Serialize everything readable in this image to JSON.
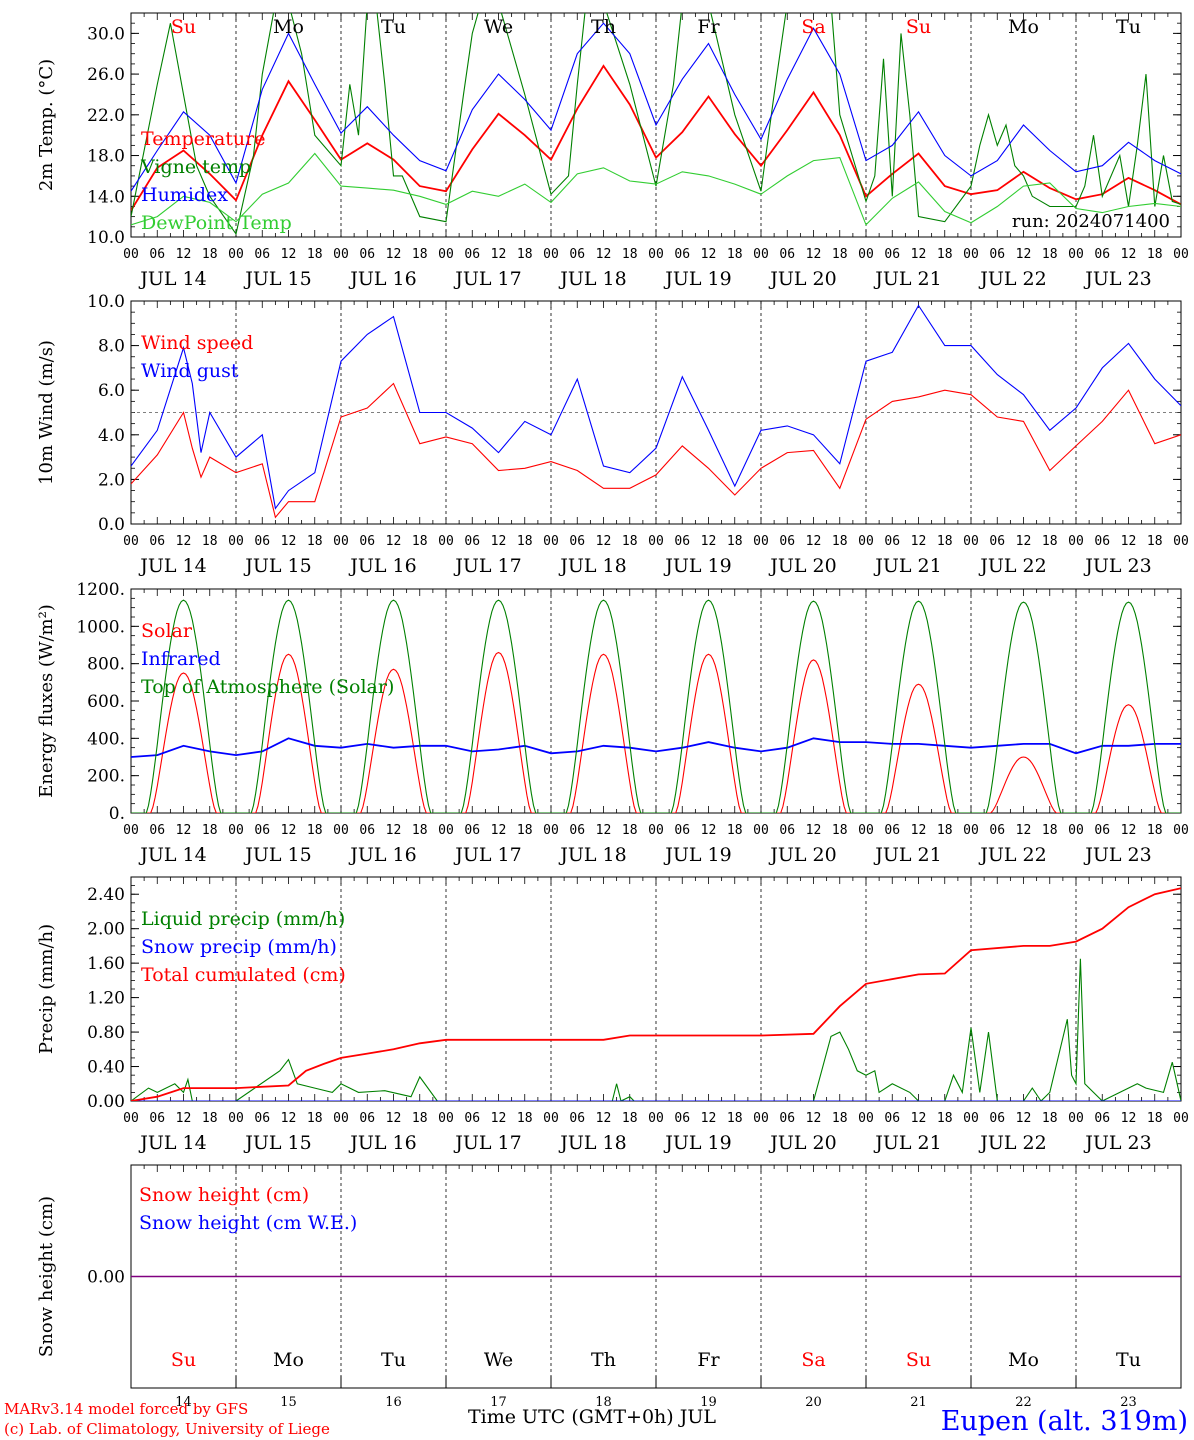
{
  "chart_data": [
    {
      "type": "line",
      "ylabel": "2m Temp. (°C)",
      "ylim": [
        10,
        32
      ],
      "yticks": [
        "10.0",
        "14.0",
        "18.0",
        "22.0",
        "26.0",
        "30.0"
      ],
      "run_label": "run: 2024071400",
      "weekdays": [
        {
          "label": "Su",
          "color": "#ff0000"
        },
        {
          "label": "Mo",
          "color": "#000000"
        },
        {
          "label": "Tu",
          "color": "#000000"
        },
        {
          "label": "We",
          "color": "#000000"
        },
        {
          "label": "Th",
          "color": "#000000"
        },
        {
          "label": "Fr",
          "color": "#000000"
        },
        {
          "label": "Sa",
          "color": "#ff0000"
        },
        {
          "label": "Su",
          "color": "#ff0000"
        },
        {
          "label": "Mo",
          "color": "#000000"
        },
        {
          "label": "Tu",
          "color": "#000000"
        }
      ],
      "series": [
        {
          "name": "Temperature",
          "color": "#ff0000",
          "hours": [
            0,
            6,
            12,
            18,
            24,
            30,
            36,
            42,
            48,
            54,
            60,
            66,
            72,
            78,
            84,
            90,
            96,
            102,
            108,
            114,
            120,
            126,
            132,
            138,
            144,
            150,
            156,
            162,
            168,
            174,
            180,
            186,
            192,
            198,
            204,
            210,
            216,
            222,
            228,
            234,
            240
          ],
          "values": [
            12.6,
            16.8,
            18.5,
            16.2,
            13.6,
            20.0,
            25.3,
            21.5,
            17.6,
            19.2,
            17.6,
            15.0,
            14.5,
            18.6,
            22.1,
            20.0,
            17.6,
            22.6,
            26.8,
            23.0,
            17.8,
            20.3,
            23.8,
            20.1,
            17.0,
            20.5,
            24.2,
            20.0,
            14.0,
            16.2,
            18.2,
            15.0,
            14.2,
            14.6,
            16.4,
            14.8,
            13.7,
            14.2,
            15.8,
            14.6,
            13.2
          ]
        },
        {
          "name": "Vigne temp",
          "color": "#008000",
          "hours": [
            0,
            6,
            9,
            12,
            15,
            18,
            24,
            28,
            30,
            33,
            36,
            39,
            42,
            48,
            50,
            52,
            54,
            56,
            58,
            60,
            62,
            66,
            72,
            76,
            78,
            80,
            84,
            90,
            96,
            100,
            102,
            104,
            106,
            108,
            114,
            120,
            124,
            126,
            128,
            130,
            132,
            138,
            144,
            147,
            150,
            153,
            156,
            158,
            160,
            162,
            168,
            170,
            172,
            174,
            176,
            178,
            180,
            186,
            192,
            194,
            196,
            198,
            200,
            202,
            204,
            206,
            210,
            216,
            218,
            220,
            222,
            226,
            228,
            230,
            232,
            234,
            236,
            238,
            240
          ],
          "values": [
            12.0,
            25.0,
            31.0,
            24.0,
            17.0,
            14.0,
            10.3,
            18.0,
            26.0,
            33.0,
            33.0,
            28.0,
            20.0,
            17.0,
            25.0,
            20.0,
            33.0,
            33.0,
            25.0,
            16.0,
            16.0,
            12.0,
            11.5,
            24.0,
            30.0,
            33.0,
            33.0,
            24.0,
            14.2,
            16.0,
            25.0,
            33.0,
            33.0,
            33.0,
            25.0,
            15.0,
            25.0,
            33.0,
            33.0,
            33.0,
            33.0,
            22.0,
            14.5,
            24.0,
            33.0,
            33.0,
            33.0,
            33.0,
            33.0,
            22.0,
            13.5,
            16.0,
            27.5,
            14.0,
            30.0,
            22.0,
            12.0,
            11.5,
            15.0,
            19.0,
            22.0,
            19.0,
            21.0,
            17.0,
            16.0,
            14.0,
            13.0,
            13.0,
            15.0,
            20.0,
            14.0,
            18.0,
            13.0,
            19.0,
            26.0,
            13.0,
            18.0,
            13.5,
            13.2
          ]
        },
        {
          "name": "Humidex",
          "color": "#0000ff",
          "hours": [
            0,
            6,
            12,
            18,
            24,
            30,
            36,
            42,
            48,
            54,
            60,
            66,
            72,
            78,
            84,
            90,
            96,
            102,
            108,
            114,
            120,
            126,
            132,
            138,
            144,
            150,
            156,
            162,
            168,
            174,
            180,
            186,
            192,
            198,
            204,
            210,
            216,
            222,
            228,
            234,
            240
          ],
          "values": [
            14.5,
            18.5,
            22.3,
            20.0,
            15.3,
            24.5,
            30.0,
            25.0,
            20.2,
            22.8,
            20.0,
            17.5,
            16.5,
            22.5,
            26.0,
            23.5,
            20.5,
            28.0,
            31.0,
            28.0,
            21.0,
            25.5,
            29.0,
            24.0,
            19.6,
            25.5,
            30.5,
            26.0,
            17.5,
            19.0,
            22.3,
            18.0,
            16.0,
            17.5,
            21.0,
            18.5,
            16.4,
            17.0,
            19.3,
            17.5,
            16.2
          ]
        },
        {
          "name": "DewPoint Temp",
          "color": "#32cd32",
          "hours": [
            0,
            6,
            12,
            18,
            24,
            30,
            36,
            42,
            48,
            54,
            60,
            66,
            72,
            78,
            84,
            90,
            96,
            102,
            108,
            114,
            120,
            126,
            132,
            138,
            144,
            150,
            156,
            162,
            168,
            174,
            180,
            186,
            192,
            198,
            204,
            210,
            216,
            222,
            228,
            234,
            240
          ],
          "values": [
            11.2,
            12.0,
            14.0,
            13.4,
            11.5,
            14.2,
            15.3,
            18.2,
            15.0,
            14.8,
            14.6,
            14.0,
            13.2,
            14.5,
            14.0,
            15.2,
            13.4,
            16.2,
            16.8,
            15.5,
            15.2,
            16.4,
            16.0,
            15.2,
            14.2,
            16.0,
            17.5,
            17.8,
            11.2,
            13.8,
            15.4,
            12.5,
            11.4,
            13.0,
            15.0,
            15.3,
            12.8,
            12.4,
            13.0,
            13.3,
            13.0
          ]
        }
      ]
    },
    {
      "type": "line",
      "ylabel": "10m Wind (m/s)",
      "ylim": [
        0,
        10
      ],
      "yticks": [
        "0.0",
        "2.0",
        "4.0",
        "6.0",
        "8.0",
        "10.0"
      ],
      "reference_line": 5,
      "series": [
        {
          "name": "Wind speed",
          "color": "#ff0000",
          "hours": [
            0,
            6,
            12,
            14,
            16,
            18,
            24,
            30,
            33,
            36,
            42,
            48,
            54,
            60,
            66,
            72,
            78,
            84,
            90,
            96,
            102,
            108,
            114,
            120,
            126,
            132,
            138,
            144,
            150,
            156,
            162,
            168,
            174,
            180,
            186,
            192,
            198,
            204,
            210,
            216,
            222,
            228,
            234,
            240
          ],
          "values": [
            1.8,
            3.1,
            5.0,
            3.4,
            2.1,
            3.0,
            2.3,
            2.7,
            0.3,
            1.0,
            1.0,
            4.8,
            5.2,
            6.3,
            3.6,
            3.9,
            3.6,
            2.4,
            2.5,
            2.8,
            2.4,
            1.6,
            1.6,
            2.2,
            3.5,
            2.5,
            1.3,
            2.5,
            3.2,
            3.3,
            1.6,
            4.7,
            5.5,
            5.7,
            6.0,
            5.8,
            4.8,
            4.6,
            2.4,
            3.5,
            4.6,
            6.0,
            3.6,
            4.0
          ]
        },
        {
          "name": "Wind gust",
          "color": "#0000ff",
          "hours": [
            0,
            6,
            12,
            14,
            16,
            18,
            24,
            30,
            33,
            36,
            42,
            48,
            54,
            60,
            66,
            72,
            78,
            84,
            90,
            96,
            102,
            108,
            114,
            120,
            126,
            132,
            138,
            144,
            150,
            156,
            162,
            168,
            174,
            180,
            186,
            192,
            198,
            204,
            210,
            216,
            222,
            228,
            234,
            240
          ],
          "values": [
            2.6,
            4.2,
            7.9,
            6.3,
            3.2,
            5.0,
            3.0,
            4.0,
            0.7,
            1.5,
            2.3,
            7.3,
            8.5,
            9.3,
            5.0,
            5.0,
            4.3,
            3.2,
            4.6,
            4.0,
            6.5,
            2.6,
            2.3,
            3.4,
            6.6,
            4.2,
            1.7,
            4.2,
            4.4,
            4.0,
            2.7,
            7.3,
            7.7,
            9.8,
            8.0,
            8.0,
            6.7,
            5.8,
            4.2,
            5.2,
            7.0,
            8.1,
            6.5,
            5.3
          ]
        }
      ]
    },
    {
      "type": "line",
      "ylabel": "Energy fluxes (W/m²)",
      "ylim": [
        0,
        1200
      ],
      "yticks": [
        "0.",
        "200.",
        "400.",
        "600.",
        "800.",
        "1000.",
        "1200."
      ],
      "series": [
        {
          "name": "Solar",
          "color": "#ff0000",
          "daily_peak": [
            750,
            850,
            770,
            860,
            850,
            850,
            820,
            690,
            300,
            580
          ]
        },
        {
          "name": "Infrared",
          "color": "#0000ff",
          "hours": [
            0,
            6,
            12,
            18,
            24,
            30,
            36,
            42,
            48,
            54,
            60,
            66,
            72,
            78,
            84,
            90,
            96,
            102,
            108,
            114,
            120,
            126,
            132,
            138,
            144,
            150,
            156,
            162,
            168,
            174,
            180,
            186,
            192,
            198,
            204,
            210,
            216,
            222,
            228,
            234,
            240
          ],
          "values": [
            300,
            310,
            360,
            330,
            310,
            330,
            400,
            360,
            350,
            370,
            350,
            360,
            360,
            330,
            340,
            360,
            320,
            330,
            360,
            350,
            330,
            350,
            380,
            350,
            330,
            350,
            400,
            380,
            380,
            370,
            370,
            360,
            350,
            360,
            370,
            370,
            320,
            360,
            360,
            370,
            370
          ]
        },
        {
          "name": "Top of Atmosphere (Solar)",
          "color": "#008000",
          "daily_peak": [
            1140,
            1140,
            1140,
            1140,
            1140,
            1140,
            1135,
            1135,
            1130,
            1130
          ]
        }
      ]
    },
    {
      "type": "line",
      "ylabel": "Precip (mm/h)",
      "ylim": [
        0,
        2.6
      ],
      "yticks": [
        "0.00",
        "0.40",
        "0.80",
        "1.20",
        "1.60",
        "2.00",
        "2.40"
      ],
      "series": [
        {
          "name": "Liquid precip (mm/h)",
          "color": "#008000",
          "hours": [
            0,
            4,
            6,
            10,
            12,
            13,
            14,
            24,
            34,
            36,
            38,
            42,
            46,
            48,
            52,
            58,
            64,
            66,
            70,
            72,
            84,
            100,
            110,
            111,
            112,
            114,
            115,
            118,
            120,
            150,
            156,
            160,
            162,
            164,
            166,
            168,
            170,
            171,
            174,
            178,
            180,
            186,
            188,
            190,
            192,
            194,
            196,
            198,
            204,
            206,
            208,
            210,
            214,
            215,
            216,
            217,
            218,
            220,
            222,
            230,
            232,
            236,
            238,
            240
          ],
          "values": [
            0,
            0.15,
            0.1,
            0.2,
            0.1,
            0.25,
            0,
            0,
            0.35,
            0.48,
            0.2,
            0.15,
            0.1,
            0.2,
            0.1,
            0.12,
            0.05,
            0.28,
            0,
            0,
            0,
            0,
            0,
            0.2,
            0,
            0.05,
            0,
            0,
            0,
            0,
            0,
            0.75,
            0.8,
            0.6,
            0.35,
            0.3,
            0.35,
            0.1,
            0.2,
            0.1,
            0,
            0,
            0.3,
            0.1,
            0.85,
            0.1,
            0.8,
            0,
            0,
            0.15,
            0,
            0.1,
            0.95,
            0.3,
            0.2,
            1.65,
            0.2,
            0.1,
            0,
            0.2,
            0.15,
            0.1,
            0.45,
            0
          ]
        },
        {
          "name": "Snow precip (mm/h)",
          "color": "#0000ff",
          "hours": [
            0,
            240
          ],
          "values": [
            0,
            0
          ]
        },
        {
          "name": "Total cumulated (cm)",
          "color": "#ff0000",
          "hours": [
            0,
            6,
            12,
            24,
            36,
            40,
            44,
            48,
            54,
            60,
            66,
            72,
            84,
            96,
            108,
            114,
            120,
            132,
            144,
            156,
            162,
            168,
            180,
            186,
            192,
            204,
            210,
            216,
            222,
            228,
            234,
            240
          ],
          "values": [
            0,
            0.05,
            0.15,
            0.15,
            0.18,
            0.35,
            0.43,
            0.5,
            0.55,
            0.6,
            0.67,
            0.71,
            0.71,
            0.71,
            0.71,
            0.76,
            0.76,
            0.76,
            0.76,
            0.78,
            1.1,
            1.36,
            1.47,
            1.48,
            1.75,
            1.8,
            1.8,
            1.85,
            2.0,
            2.25,
            2.4,
            2.47
          ]
        }
      ]
    },
    {
      "type": "line",
      "ylabel": "Snow height (cm)",
      "ylim": [
        -1,
        1
      ],
      "yticks": [
        "0.00"
      ],
      "series": [
        {
          "name": "Snow height (cm)",
          "color": "#ff0000",
          "hours": [
            0,
            240
          ],
          "values": [
            0,
            0
          ]
        },
        {
          "name": "Snow height (cm W.E.)",
          "color": "#0000ff",
          "hours": [
            0,
            240
          ],
          "values": [
            0,
            0
          ]
        }
      ]
    }
  ],
  "x_axis": {
    "hour_ticks": [
      "00",
      "06",
      "12",
      "18"
    ],
    "end_tick": "00",
    "dates": [
      "JUL 14",
      "JUL 15",
      "JUL 16",
      "JUL 17",
      "JUL 18",
      "JUL 19",
      "JUL 20",
      "JUL 21",
      "JUL 22",
      "JUL 23"
    ],
    "day_numbers": [
      "14",
      "15",
      "16",
      "17",
      "18",
      "19",
      "20",
      "21",
      "22",
      "23"
    ],
    "title": "Time UTC (GMT+0h) JUL"
  },
  "footer": {
    "credit_line1": "MARv3.14 model forced by GFS",
    "credit_line2": "(c) Lab. of Climatology, University of Liege",
    "station": "Eupen (alt. 319m)",
    "credit_color": "#ff0000",
    "station_color": "#0000ff"
  }
}
